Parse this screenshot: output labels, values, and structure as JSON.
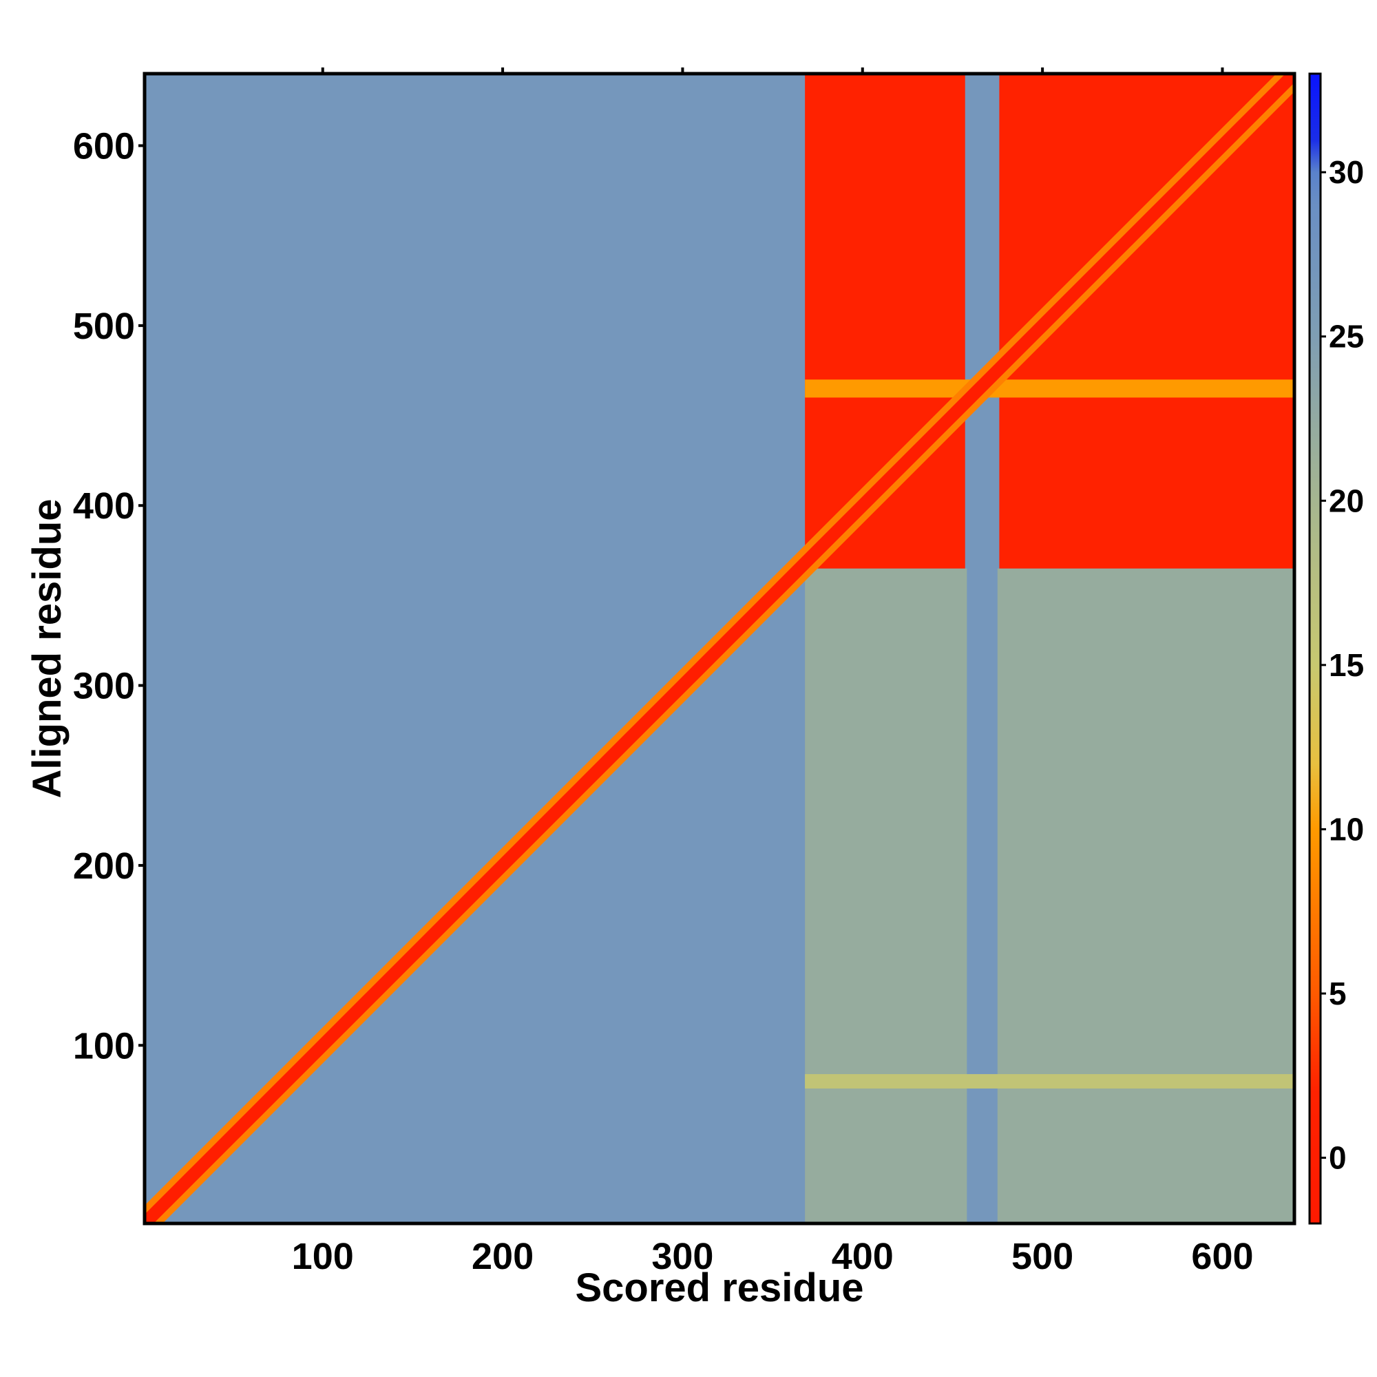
{
  "chart_data": {
    "type": "heatmap",
    "title": "",
    "xlabel": "Scored residue",
    "ylabel": "Aligned residue",
    "xlim": [
      1,
      640
    ],
    "ylim": [
      1,
      640
    ],
    "x_ticks": [
      100,
      200,
      300,
      400,
      500,
      600
    ],
    "y_ticks": [
      100,
      200,
      300,
      400,
      500,
      600
    ],
    "colorbar": {
      "range": [
        -2,
        33
      ],
      "ticks": [
        0,
        5,
        10,
        15,
        20,
        25,
        30
      ],
      "stops": [
        {
          "value": -2,
          "color": "#ff1a00"
        },
        {
          "value": 2,
          "color": "#ff2200"
        },
        {
          "value": 5,
          "color": "#ff5a00"
        },
        {
          "value": 10,
          "color": "#ff9a00"
        },
        {
          "value": 12,
          "color": "#e8c040"
        },
        {
          "value": 15,
          "color": "#c8c870"
        },
        {
          "value": 20,
          "color": "#a6b690"
        },
        {
          "value": 25,
          "color": "#7f9eb4"
        },
        {
          "value": 29,
          "color": "#6a8fc4"
        },
        {
          "value": 30,
          "color": "#5a82cc"
        },
        {
          "value": 31,
          "color": "#1a2de8"
        },
        {
          "value": 33,
          "color": "#0a14ff"
        }
      ]
    },
    "regions": [
      {
        "name": "background",
        "x": [
          1,
          640
        ],
        "y": [
          1,
          640
        ],
        "value": 27
      },
      {
        "name": "scored-c-term-vs-aligned-n-term",
        "x": [
          368,
          640
        ],
        "y": [
          1,
          365
        ],
        "value": 22
      },
      {
        "name": "linker-column",
        "x": [
          458,
          475
        ],
        "y": [
          1,
          640
        ],
        "value": 27
      },
      {
        "name": "c-term-block-left",
        "x": [
          368,
          457
        ],
        "y": [
          365,
          640
        ],
        "value": 2
      },
      {
        "name": "c-term-block-right",
        "x": [
          476,
          640
        ],
        "y": [
          365,
          640
        ],
        "value": 2
      },
      {
        "name": "band-aligned-465",
        "x": [
          368,
          640
        ],
        "y": [
          460,
          470
        ],
        "value": 10
      },
      {
        "name": "band-aligned-80",
        "x": [
          368,
          640
        ],
        "y": [
          76,
          84
        ],
        "value": 16
      }
    ],
    "diagonal": {
      "from": 1,
      "to": 640,
      "value": 0,
      "band_width": 5
    }
  }
}
